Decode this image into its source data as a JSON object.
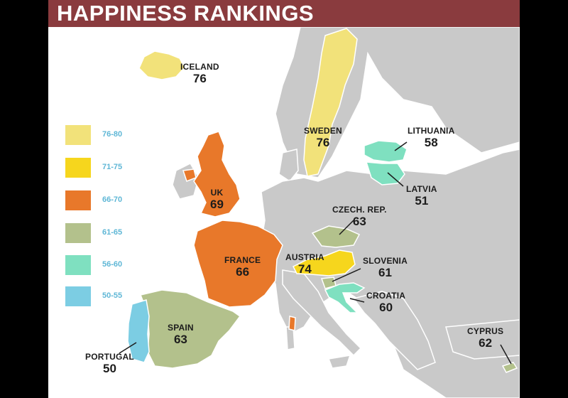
{
  "title": "HAPPINESS RANKINGS",
  "colors": {
    "header": "#8a3b3e",
    "sea": "#ffffff",
    "land": "#c9c9c9",
    "border": "#ffffff"
  },
  "legend": [
    {
      "range": "76-80",
      "color": "#f2e27a"
    },
    {
      "range": "71-75",
      "color": "#f6d61d"
    },
    {
      "range": "66-70",
      "color": "#e8782a"
    },
    {
      "range": "61-65",
      "color": "#b3c18c"
    },
    {
      "range": "56-60",
      "color": "#7fe0c0"
    },
    {
      "range": "50-55",
      "color": "#7ccde3"
    }
  ],
  "countries": [
    {
      "key": "iceland",
      "name": "ICELAND",
      "score": "76"
    },
    {
      "key": "sweden",
      "name": "SWEDEN",
      "score": "76"
    },
    {
      "key": "uk",
      "name": "UK",
      "score": "69"
    },
    {
      "key": "france",
      "name": "FRANCE",
      "score": "66"
    },
    {
      "key": "spain",
      "name": "SPAIN",
      "score": "63"
    },
    {
      "key": "portugal",
      "name": "PORTUGAL",
      "score": "50"
    },
    {
      "key": "austria",
      "name": "AUSTRIA",
      "score": "74"
    },
    {
      "key": "czech",
      "name": "CZECH. REP.",
      "score": "63"
    },
    {
      "key": "slovenia",
      "name": "SLOVENIA",
      "score": "61"
    },
    {
      "key": "croatia",
      "name": "CROATIA",
      "score": "60"
    },
    {
      "key": "lithuania",
      "name": "LITHUANIA",
      "score": "58"
    },
    {
      "key": "latvia",
      "name": "LATVIA",
      "score": "51"
    },
    {
      "key": "cyprus",
      "name": "CYPRUS",
      "score": "62"
    }
  ]
}
